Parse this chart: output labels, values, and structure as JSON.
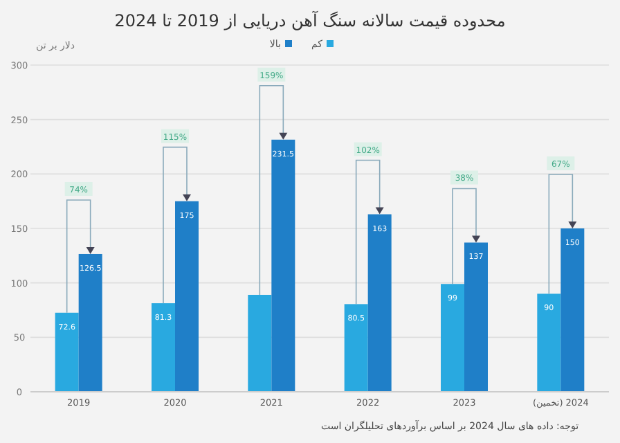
{
  "chart_data": {
    "type": "bar",
    "title": "محدوده قیمت سالانه سنگ آهن دریایی از 2019 تا 2024",
    "ylabel": "دلار بر تن",
    "categories": [
      "2019",
      "2020",
      "2021",
      "2022",
      "2023",
      "2024 (تخمین)"
    ],
    "series": [
      {
        "name": "کم",
        "color": "#29a9e0",
        "values": [
          72.6,
          81.3,
          89,
          80.5,
          99,
          90
        ],
        "value_labels": [
          "72.6",
          "81.3",
          null,
          "80.5",
          "99",
          "90"
        ]
      },
      {
        "name": "بالا",
        "color": "#1f7fc8",
        "values": [
          126.5,
          175,
          231.5,
          163,
          137,
          150
        ],
        "value_labels": [
          "126.5",
          "175",
          "231.5",
          "163",
          "137",
          "150"
        ]
      }
    ],
    "annotations": [
      "74%",
      "115%",
      "159%",
      "102%",
      "38%",
      "67%",
      "توجه: داده های سال 2024 بر اساس برآوردهای تحلیلگران است"
    ],
    "ylim": [
      0,
      300
    ],
    "yticks": [
      0,
      50,
      100,
      150,
      200,
      250,
      300
    ],
    "grid": "y",
    "legend": "top"
  }
}
